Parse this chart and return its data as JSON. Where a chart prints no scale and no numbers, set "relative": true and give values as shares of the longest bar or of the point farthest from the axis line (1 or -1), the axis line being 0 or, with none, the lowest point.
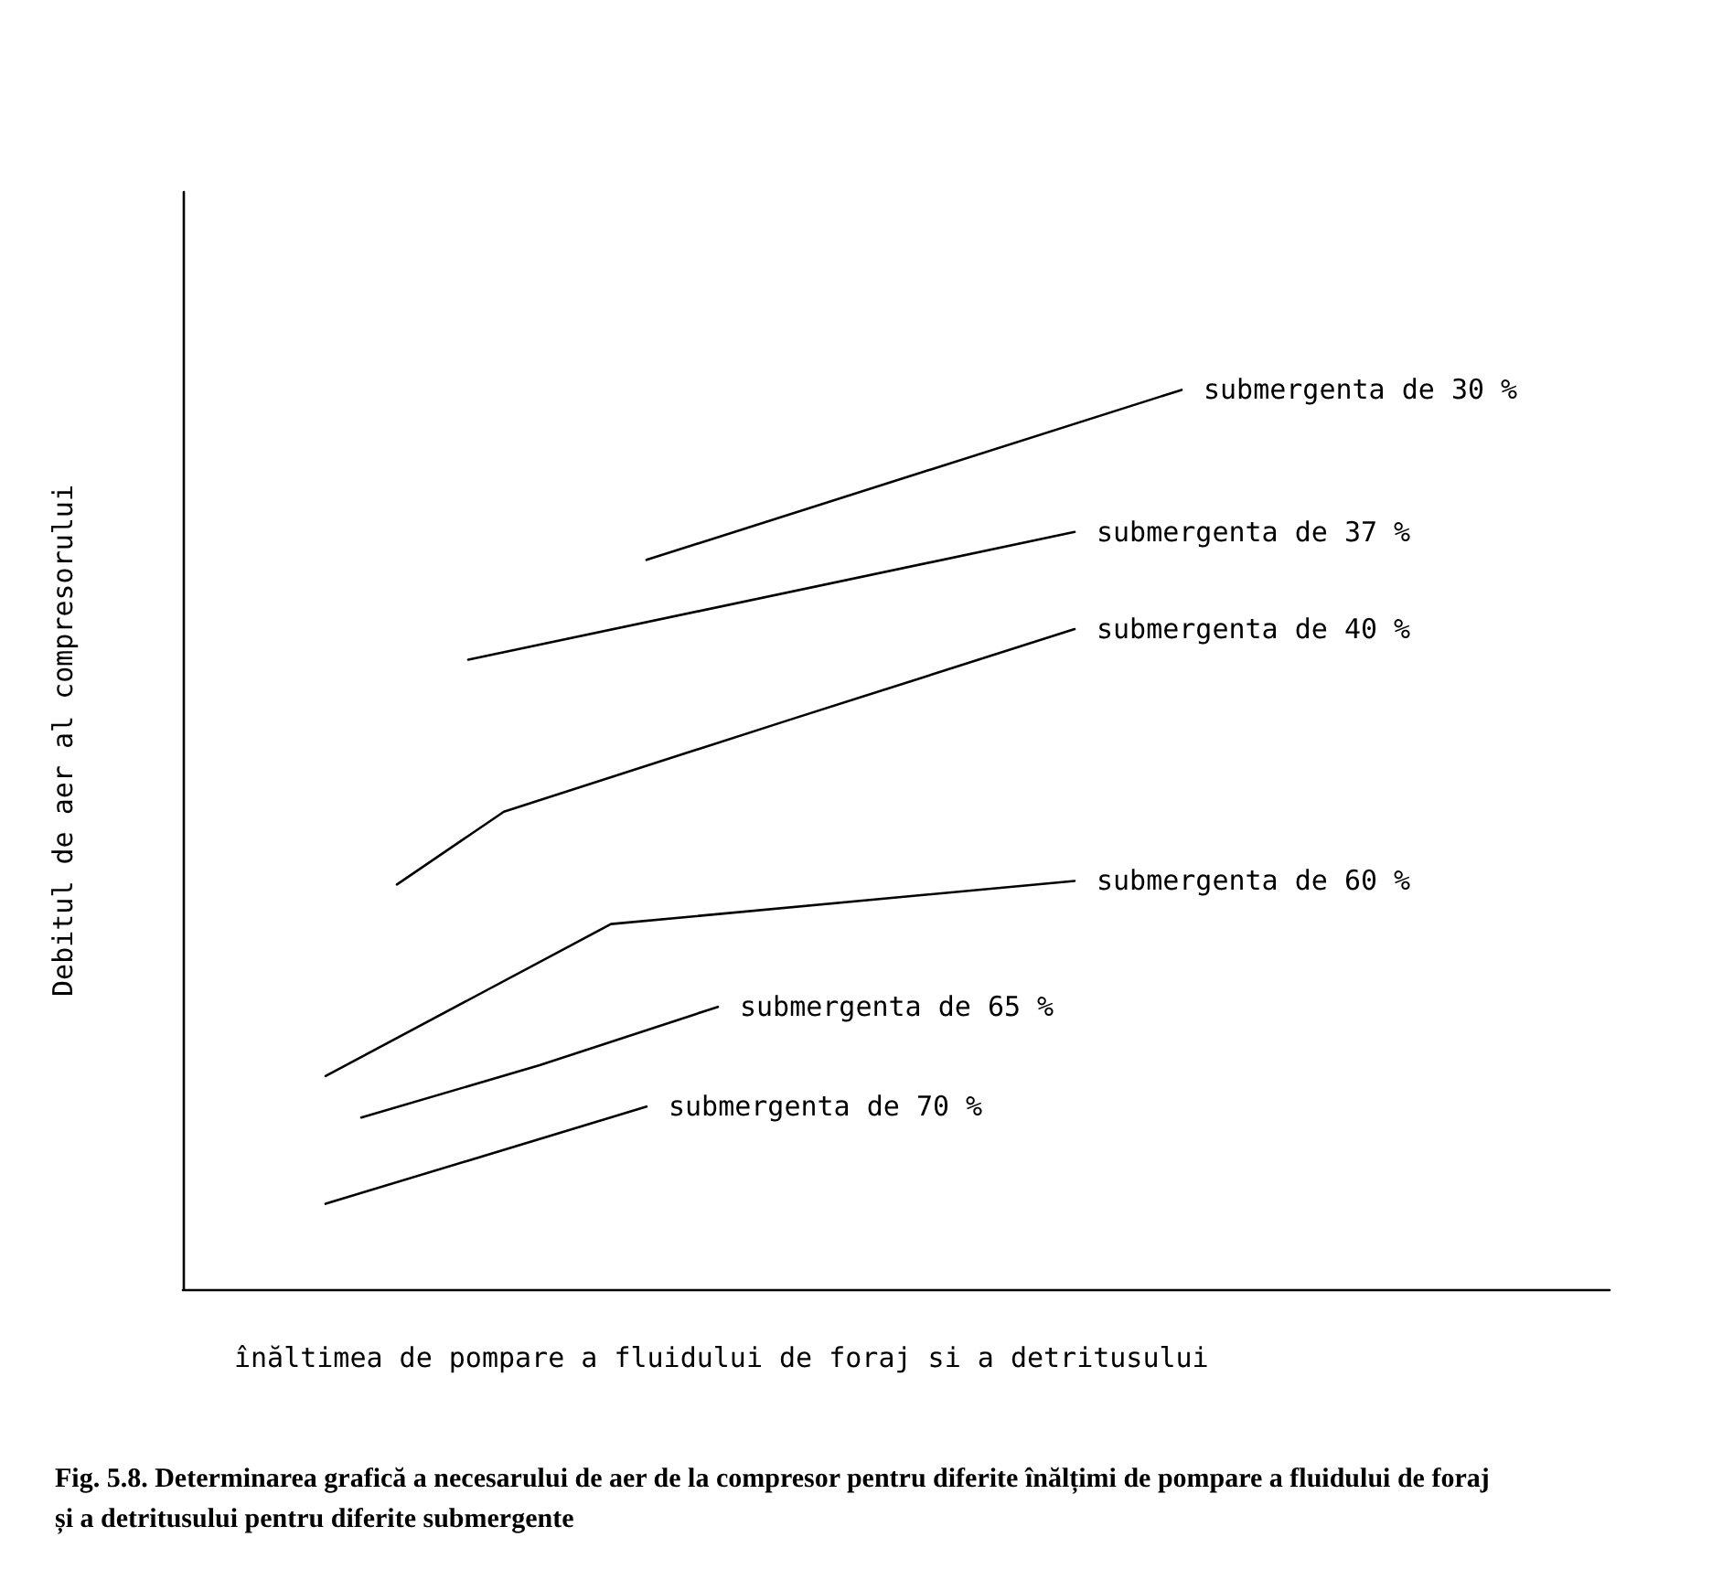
{
  "chart_data": {
    "type": "line",
    "relative": true,
    "xlabel": "înăltimea de pompare a fluidului de foraj si a detritusului",
    "ylabel": "Debitul de aer al compresorului",
    "grid": false,
    "legend": false,
    "marker": "none",
    "line_style": "solid",
    "annotations": [
      "Fig. 5.8. Determinarea grafică a necesarului de aer de la compresor pentru diferite înălțimi de pompare a fluidului de foraj și a detritusului pentru diferite submergente"
    ],
    "categories": [
      null,
      null,
      null,
      null,
      null,
      null,
      null,
      null,
      null,
      null,
      null,
      null,
      null,
      null,
      null,
      null,
      null,
      null,
      null,
      null,
      null,
      null,
      null,
      null,
      null,
      null,
      null,
      null,
      null,
      null,
      null,
      null,
      null,
      null,
      null,
      null,
      null,
      null,
      null,
      null,
      null
    ],
    "series": [
      {
        "name": "submergenta de 30 %",
        "color": "#000000",
        "values": [
          null,
          null,
          null,
          null,
          null,
          null,
          null,
          null,
          null,
          null,
          null,
          null,
          null,
          0.811,
          null,
          null,
          null,
          null,
          null,
          null,
          null,
          null,
          null,
          null,
          null,
          null,
          null,
          null,
          1,
          null,
          null,
          null,
          null,
          null,
          null,
          null,
          null,
          null,
          null,
          null,
          null
        ]
      },
      {
        "name": "submergenta de 37 %",
        "color": "#000000",
        "values": [
          null,
          null,
          null,
          null,
          null,
          null,
          null,
          null,
          0.7,
          null,
          null,
          null,
          null,
          null,
          null,
          null,
          null,
          null,
          null,
          null,
          null,
          null,
          null,
          null,
          null,
          0.842,
          null,
          null,
          null,
          null,
          null,
          null,
          null,
          null,
          null,
          null,
          null,
          null,
          null,
          null,
          null
        ]
      },
      {
        "name": "submergenta de 40 %",
        "color": "#000000",
        "values": [
          null,
          null,
          null,
          null,
          null,
          null,
          0.45,
          null,
          null,
          0.531,
          null,
          null,
          null,
          null,
          null,
          null,
          null,
          0.633,
          null,
          null,
          null,
          null,
          null,
          null,
          null,
          0.734,
          null,
          null,
          null,
          null,
          null,
          null,
          null,
          null,
          null,
          null,
          null,
          null,
          null,
          null,
          null
        ]
      },
      {
        "name": "submergenta de 60 %",
        "color": "#000000",
        "values": [
          null,
          null,
          null,
          null,
          0.237,
          null,
          null,
          null,
          null,
          null,
          null,
          null,
          0.406,
          null,
          null,
          null,
          null,
          null,
          null,
          null,
          null,
          null,
          null,
          null,
          null,
          0.454,
          null,
          null,
          null,
          null,
          null,
          null,
          null,
          null,
          null,
          null,
          null,
          null,
          null,
          null,
          null
        ]
      },
      {
        "name": "submergenta de 65 %",
        "color": "#000000",
        "values": [
          null,
          null,
          null,
          null,
          null,
          0.191,
          null,
          null,
          null,
          null,
          0.249,
          null,
          null,
          null,
          null,
          0.314,
          null,
          null,
          null,
          null,
          null,
          null,
          null,
          null,
          null,
          null,
          null,
          null,
          null,
          null,
          null,
          null,
          null,
          null,
          null,
          null,
          null,
          null,
          null,
          null,
          null
        ]
      },
      {
        "name": "submergenta de 70 %",
        "color": "#000000",
        "values": [
          null,
          null,
          null,
          null,
          0.095,
          null,
          null,
          null,
          null,
          null,
          null,
          null,
          null,
          0.203,
          null,
          null,
          null,
          null,
          null,
          null,
          null,
          null,
          null,
          null,
          null,
          null,
          null,
          null,
          null,
          null,
          null,
          null,
          null,
          null,
          null,
          null,
          null,
          null,
          null,
          null,
          null
        ]
      }
    ]
  }
}
